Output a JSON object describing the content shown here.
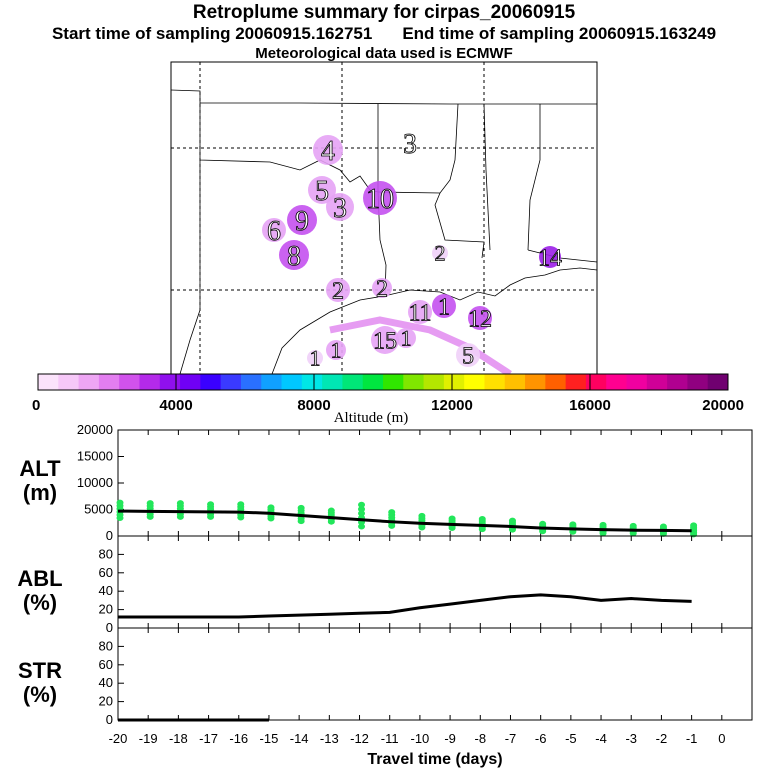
{
  "header": {
    "title": "Retroplume summary for cirpas_20060915",
    "start_sampling": "Start time of sampling 20060915.162751",
    "end_sampling": "End time of sampling 20060915.163249",
    "met_data": "Meteorological data used is ECMWF"
  },
  "map": {
    "plume_labels": [
      {
        "text": "4",
        "color": "#e6a3f5"
      },
      {
        "text": "3",
        "color": "#ffffff"
      },
      {
        "text": "5",
        "color": "#e6a3f5"
      },
      {
        "text": "3",
        "color": "#e6a3f5"
      },
      {
        "text": "10",
        "color": "#c451f0"
      },
      {
        "text": "6",
        "color": "#e6a3f5"
      },
      {
        "text": "9",
        "color": "#c451f0"
      },
      {
        "text": "8",
        "color": "#c451f0"
      },
      {
        "text": "2",
        "color": "#f0d0f8"
      },
      {
        "text": "14",
        "color": "#9b1fe8"
      },
      {
        "text": "2",
        "color": "#e6a3f5"
      },
      {
        "text": "2",
        "color": "#e6a3f5"
      },
      {
        "text": "11",
        "color": "#e6a3f5"
      },
      {
        "text": "1",
        "color": "#c451f0"
      },
      {
        "text": "12",
        "color": "#c451f0"
      },
      {
        "text": "1",
        "color": "#f0d0f8"
      },
      {
        "text": "15",
        "color": "#e6a3f5"
      },
      {
        "text": "1",
        "color": "#e6a3f5"
      },
      {
        "text": "1",
        "color": "#e6a3f5"
      },
      {
        "text": "5",
        "color": "#f0d0f8"
      }
    ]
  },
  "colorbar": {
    "title": "Altitude (m)",
    "tick_labels": [
      "0",
      "4000",
      "8000",
      "12000",
      "16000",
      "20000"
    ],
    "colors": [
      "#fbe3fb",
      "#f6c8f8",
      "#eea6f4",
      "#e37ef0",
      "#d152ec",
      "#b42aea",
      "#9010ee",
      "#7000f5",
      "#3a00ff",
      "#3a3aff",
      "#2a70ff",
      "#10a0ff",
      "#00c8ff",
      "#00e6e6",
      "#00e6b4",
      "#00e678",
      "#00e640",
      "#30e600",
      "#80e600",
      "#b4e600",
      "#e0f000",
      "#ffff00",
      "#ffe000",
      "#ffc000",
      "#ff9400",
      "#ff6000",
      "#ff2020",
      "#ff0060",
      "#ff0090",
      "#f000a0",
      "#d00098",
      "#b00090",
      "#900080",
      "#700070"
    ]
  },
  "chart_data": [
    {
      "type": "scatter",
      "panel": "ALT",
      "ylabel": "ALT (m)",
      "ylabel_line1": "ALT",
      "ylabel_line2": "(m)",
      "ylim": [
        0,
        20000
      ],
      "yticks": [
        "0",
        "5000",
        "10000",
        "15000",
        "20000"
      ],
      "x": [
        -20,
        -19,
        -18,
        -17,
        -16,
        -15,
        -14,
        -13,
        -12,
        -11,
        -10,
        -9,
        -8,
        -7,
        -6,
        -5,
        -4,
        -3,
        -2,
        -1
      ],
      "median_line": [
        4700,
        4650,
        4600,
        4550,
        4500,
        4300,
        3900,
        3500,
        3100,
        2700,
        2400,
        2200,
        2000,
        1800,
        1500,
        1350,
        1200,
        1100,
        1050,
        1000
      ],
      "point_min": [
        3400,
        3600,
        3600,
        3600,
        3500,
        3300,
        2800,
        2700,
        1800,
        1900,
        1600,
        1500,
        1300,
        1200,
        900,
        800,
        500,
        500,
        400,
        300
      ],
      "point_max": [
        6300,
        6200,
        6200,
        6000,
        6000,
        5400,
        5300,
        4800,
        5900,
        4500,
        3800,
        3300,
        3200,
        2900,
        2300,
        2200,
        2100,
        1900,
        1800,
        2000
      ],
      "point_color": "#22e65a",
      "line_color": "#000000"
    },
    {
      "type": "line",
      "panel": "ABL",
      "ylabel": "ABL (%)",
      "ylabel_line1": "ABL",
      "ylabel_line2": "(%)",
      "ylim": [
        0,
        100
      ],
      "yticks": [
        "0",
        "20",
        "40",
        "60",
        "80"
      ],
      "x": [
        -20,
        -19,
        -18,
        -17,
        -16,
        -15,
        -14,
        -13,
        -12,
        -11,
        -10,
        -9,
        -8,
        -7,
        -6,
        -5,
        -4,
        -3,
        -2,
        -1
      ],
      "values": [
        12,
        12,
        12,
        12,
        12,
        13,
        14,
        15,
        16,
        17,
        22,
        26,
        30,
        34,
        36,
        34,
        30,
        32,
        30,
        29
      ]
    },
    {
      "type": "line",
      "panel": "STR",
      "ylabel": "STR (%)",
      "ylabel_line1": "STR",
      "ylabel_line2": "(%)",
      "ylim": [
        0,
        100
      ],
      "yticks": [
        "0",
        "20",
        "40",
        "60",
        "80"
      ],
      "x": [
        -20,
        -19,
        -18,
        -17,
        -16,
        -15
      ],
      "values": [
        0,
        0,
        0,
        0,
        0,
        0
      ],
      "xlabel": "Travel time (days)",
      "xticks": [
        "-20",
        "-19",
        "-18",
        "-17",
        "-16",
        "-15",
        "-14",
        "-13",
        "-12",
        "-11",
        "-10",
        "-9",
        "-8",
        "-7",
        "-6",
        "-5",
        "-4",
        "-3",
        "-2",
        "-1",
        "0"
      ]
    }
  ]
}
